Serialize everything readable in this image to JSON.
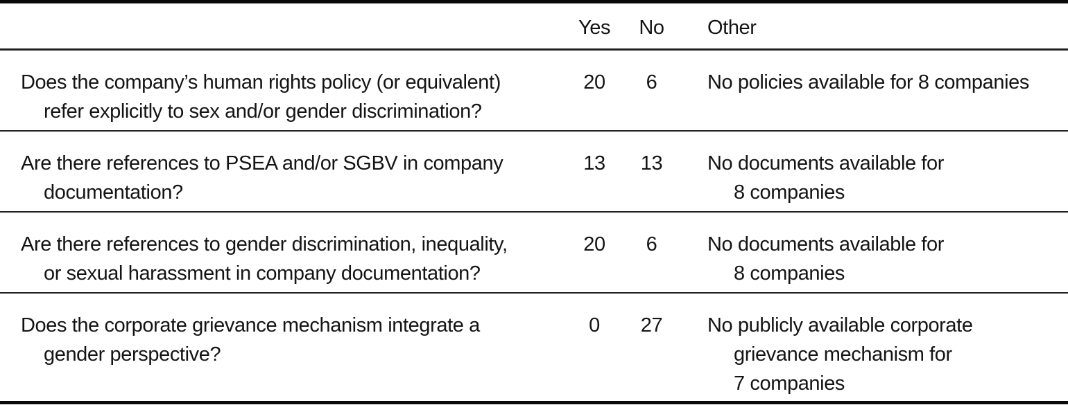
{
  "table": {
    "headers": {
      "question": "",
      "yes": "Yes",
      "no": "No",
      "other": "Other"
    },
    "rows": [
      {
        "question_lines": [
          "Does the company’s human rights policy (or equivalent)",
          "refer explicitly to sex and/or gender discrimination?"
        ],
        "yes": "20",
        "no": "6",
        "other_lines": [
          "No policies available for 8 companies"
        ]
      },
      {
        "question_lines": [
          "Are there references to PSEA and/or SGBV in company",
          "documentation?"
        ],
        "yes": "13",
        "no": "13",
        "other_lines": [
          "No documents available for",
          "8 companies"
        ]
      },
      {
        "question_lines": [
          "Are there references to gender discrimination, inequality,",
          "or sexual harassment in company documentation?"
        ],
        "yes": "20",
        "no": "6",
        "other_lines": [
          "No documents available for",
          "8 companies"
        ]
      },
      {
        "question_lines": [
          "Does the corporate grievance mechanism integrate a",
          "gender perspective?"
        ],
        "yes": "0",
        "no": "27",
        "other_lines": [
          "No publicly available corporate",
          "grievance mechanism for",
          "7 companies"
        ]
      }
    ]
  }
}
